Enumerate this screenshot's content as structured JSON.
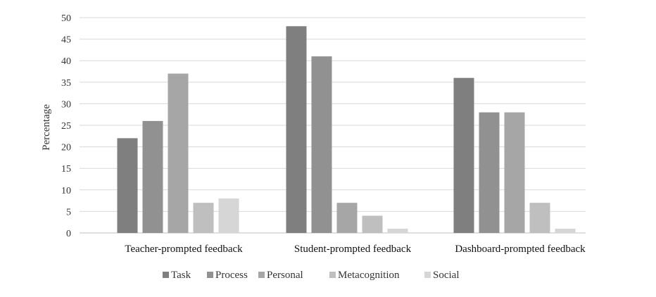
{
  "chart_data": {
    "type": "bar",
    "title": "",
    "xlabel": "",
    "ylabel": "Percentage",
    "ylim": [
      0,
      50
    ],
    "yticks": [
      0,
      5,
      10,
      15,
      20,
      25,
      30,
      35,
      40,
      45,
      50
    ],
    "grid": true,
    "legend_position": "bottom",
    "categories": [
      "Teacher-prompted feedback",
      "Student-prompted feedback",
      "Dashboard-prompted feedback"
    ],
    "series": [
      {
        "name": "Task",
        "color": "#7f7f7f",
        "values": [
          22,
          48,
          36
        ]
      },
      {
        "name": "Process",
        "color": "#919191",
        "values": [
          26,
          41,
          28
        ]
      },
      {
        "name": "Personal",
        "color": "#a6a6a6",
        "values": [
          37,
          7,
          28
        ]
      },
      {
        "name": "Metacognition",
        "color": "#bfbfbf",
        "values": [
          7,
          4,
          7
        ]
      },
      {
        "name": "Social",
        "color": "#d6d6d6",
        "values": [
          8,
          1,
          1
        ]
      }
    ]
  }
}
